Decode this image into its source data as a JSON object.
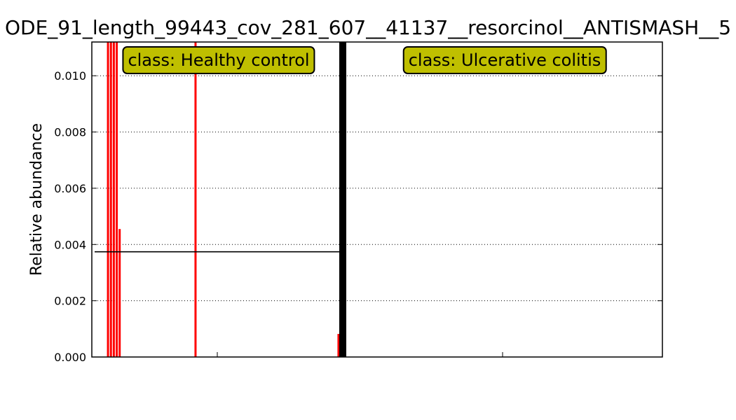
{
  "title": "ODE_91_length_99443_cov_281_607__41137__resorcinol__ANTISMASH__5",
  "chart_data": {
    "type": "bar",
    "ylabel": "Relative abundance",
    "ylim": [
      0,
      0.0112
    ],
    "yticks": [
      0.0,
      0.002,
      0.004,
      0.006,
      0.008,
      0.01
    ],
    "ytick_labels": [
      "0.000",
      "0.002",
      "0.004",
      "0.006",
      "0.008",
      "0.010"
    ],
    "grid": true,
    "groups": [
      {
        "label": "class: Healthy control",
        "color": "#ff0000",
        "mean": 0.00374,
        "values": [
          0,
          0,
          0,
          0,
          0,
          0.0112,
          0.0112,
          0.0112,
          0.0112,
          0.00455,
          0,
          0,
          0,
          0,
          0,
          0,
          0,
          0,
          0,
          0,
          0,
          0,
          0,
          0,
          0,
          0,
          0,
          0,
          0,
          0,
          0,
          0,
          0,
          0,
          0,
          0.0112,
          0,
          0,
          0,
          0,
          0,
          0,
          0,
          0,
          0,
          0,
          0,
          0,
          0,
          0,
          0,
          0,
          0,
          0,
          0,
          0,
          0,
          0,
          0,
          0,
          0,
          0,
          0,
          0,
          0,
          0,
          0,
          0,
          0,
          0,
          0,
          0,
          0,
          0,
          0,
          0,
          0,
          0,
          0,
          0,
          0,
          0,
          0,
          0,
          0.00082,
          0
        ]
      },
      {
        "label": "class: Ulcerative colitis",
        "color": "#ff0000",
        "mean": 0,
        "values": []
      }
    ],
    "separator_color": "#000000"
  }
}
